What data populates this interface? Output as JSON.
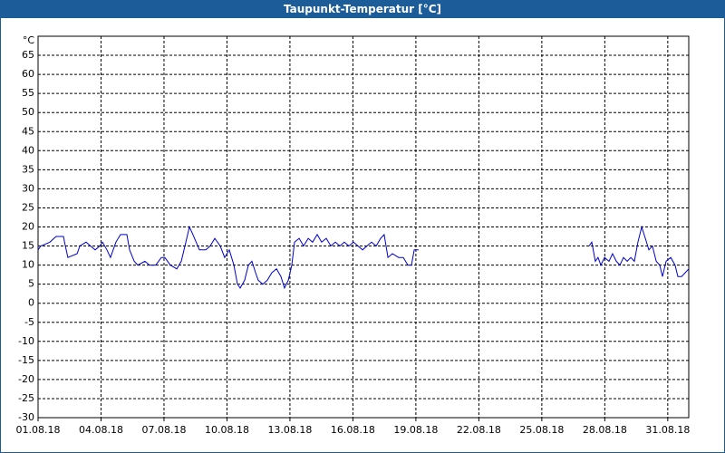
{
  "chart_data": {
    "type": "line",
    "title": "Taupunkt-Temperatur [°C]",
    "y_unit": "°C",
    "x": [
      1.0,
      1.13,
      1.56,
      1.86,
      2.21,
      2.3,
      2.42,
      2.86,
      2.99,
      3.29,
      3.5,
      3.72,
      3.94,
      4.07,
      4.28,
      4.45,
      4.71,
      4.93,
      5.23,
      5.36,
      5.58,
      5.75,
      6.09,
      6.31,
      6.61,
      6.87,
      7.04,
      7.3,
      7.61,
      7.82,
      8.04,
      8.21,
      8.38,
      8.69,
      8.99,
      9.2,
      9.42,
      9.68,
      9.89,
      10.11,
      10.33,
      10.5,
      10.63,
      10.84,
      11.02,
      11.19,
      11.36,
      11.49,
      11.71,
      11.92,
      12.14,
      12.36,
      12.57,
      12.74,
      12.92,
      13.09,
      13.22,
      13.44,
      13.65,
      13.87,
      14.08,
      14.3,
      14.51,
      14.73,
      14.95,
      15.16,
      15.38,
      15.59,
      15.81,
      16.03,
      16.24,
      16.46,
      16.67,
      16.89,
      17.11,
      17.32,
      17.49,
      17.67,
      17.88,
      18.18,
      18.4,
      18.62,
      18.79,
      18.92,
      19.13,
      23.0,
      27.25,
      27.38,
      27.55,
      27.68,
      27.81,
      27.99,
      28.2,
      28.37,
      28.55,
      28.72,
      28.89,
      29.07,
      29.24,
      29.41,
      29.58,
      29.76,
      29.93,
      30.1,
      30.27,
      30.45,
      30.62,
      30.75,
      30.92,
      31.14,
      31.35,
      31.48,
      31.66,
      31.83,
      32.0
    ],
    "series": [
      {
        "color": "#0000cc",
        "values": [
          14,
          15,
          16,
          17.5,
          17.5,
          15,
          12,
          13,
          15,
          16,
          15,
          14,
          15,
          16,
          14,
          12,
          16,
          18,
          18,
          14,
          11,
          10,
          11,
          10,
          10,
          12,
          12,
          10,
          9,
          11,
          16,
          20,
          18,
          14,
          14,
          15,
          17,
          15,
          12,
          14,
          10,
          5,
          4,
          6,
          10,
          11,
          8,
          6,
          5,
          6,
          8,
          9,
          7,
          4,
          6,
          10,
          16,
          17,
          15,
          17,
          16,
          18,
          16,
          17,
          15,
          16,
          15,
          16,
          15,
          16,
          15,
          14,
          15,
          16,
          15,
          17,
          18,
          12,
          13,
          12,
          12,
          10,
          10,
          14,
          14,
          null,
          15,
          16,
          11,
          12,
          10,
          12,
          11,
          13,
          11,
          10,
          12,
          11,
          12,
          11,
          16,
          20,
          17,
          14,
          15,
          11,
          10,
          7,
          11,
          12,
          10,
          7,
          7,
          8,
          9
        ]
      }
    ],
    "xlim": [
      1,
      32
    ],
    "xticks": [
      {
        "value": 1,
        "label": "01.08.18"
      },
      {
        "value": 4,
        "label": "04.08.18"
      },
      {
        "value": 7,
        "label": "07.08.18"
      },
      {
        "value": 10,
        "label": "10.08.18"
      },
      {
        "value": 13,
        "label": "13.08.18"
      },
      {
        "value": 16,
        "label": "16.08.18"
      },
      {
        "value": 19,
        "label": "19.08.18"
      },
      {
        "value": 22,
        "label": "22.08.18"
      },
      {
        "value": 25,
        "label": "25.08.18"
      },
      {
        "value": 28,
        "label": "28.08.18"
      },
      {
        "value": 31,
        "label": "31.08.18"
      }
    ],
    "ylim": [
      -30,
      70
    ],
    "yticks": [
      -30,
      -25,
      -20,
      -15,
      -10,
      -5,
      0,
      5,
      10,
      15,
      20,
      25,
      30,
      35,
      40,
      45,
      50,
      55,
      60,
      65
    ],
    "grid": true
  }
}
